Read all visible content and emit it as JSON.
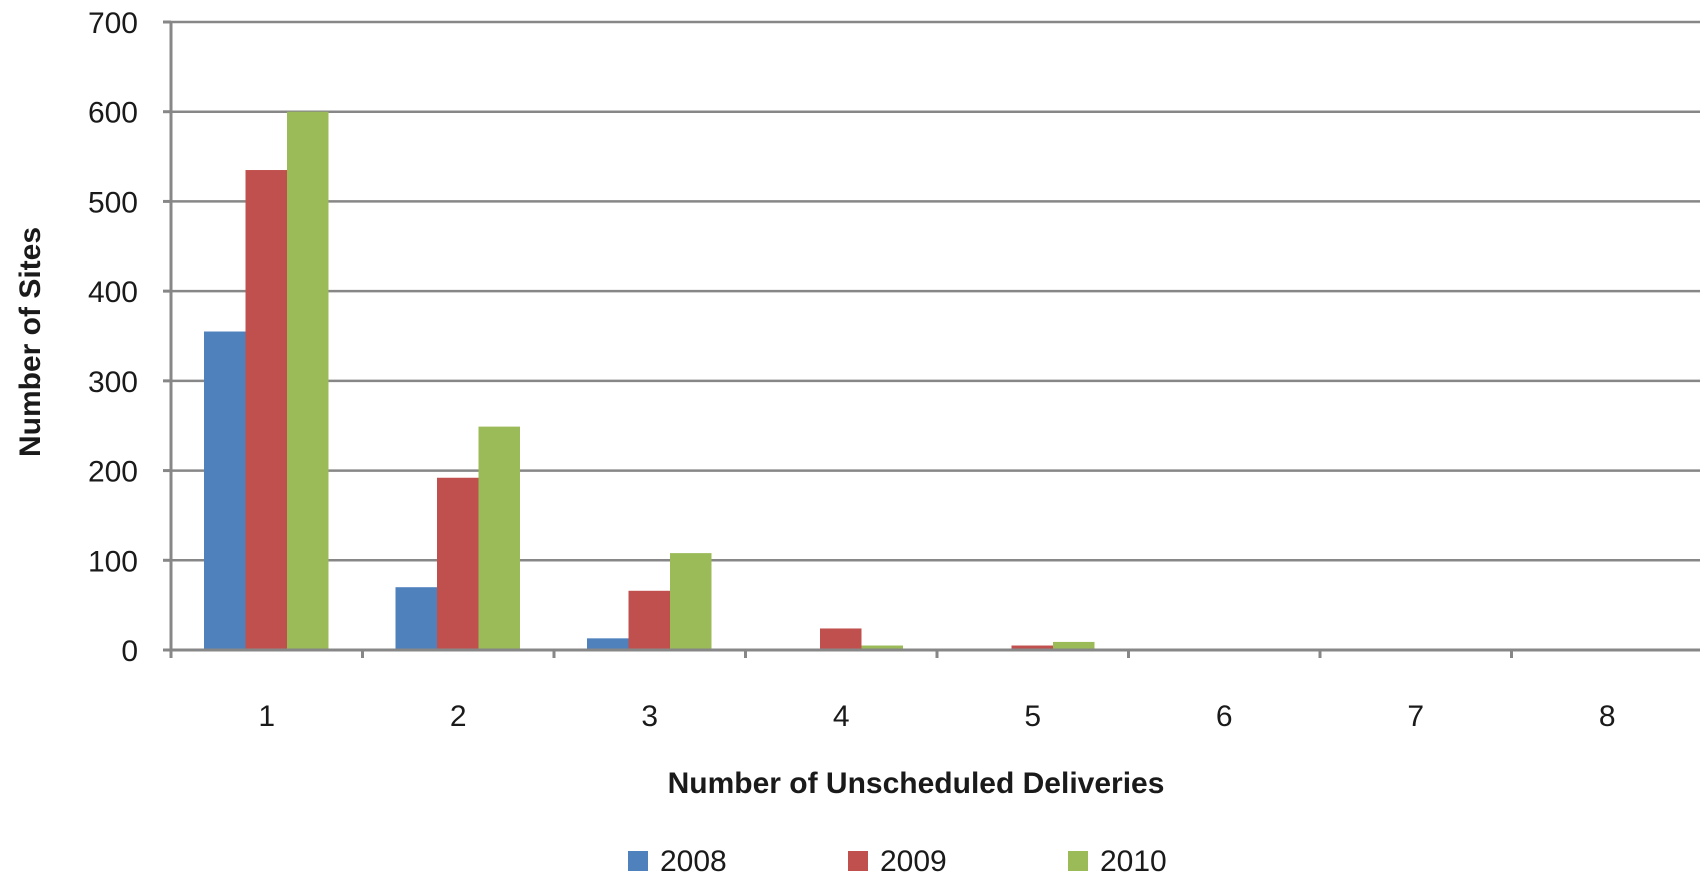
{
  "chart_data": {
    "type": "bar",
    "title": "",
    "xlabel": "Number of Unscheduled Deliveries",
    "ylabel": "Number of Sites",
    "categories": [
      "1",
      "2",
      "3",
      "4",
      "5",
      "6",
      "7",
      "8"
    ],
    "ylim": [
      0,
      700
    ],
    "yticks": [
      0,
      100,
      200,
      300,
      400,
      500,
      600,
      700
    ],
    "grid": true,
    "legend_position": "bottom",
    "series": [
      {
        "name": "2008",
        "color": "#4f81bd",
        "values": [
          355,
          70,
          13,
          0,
          0,
          0,
          0,
          0
        ]
      },
      {
        "name": "2009",
        "color": "#c0504d",
        "values": [
          535,
          192,
          66,
          24,
          5,
          0,
          0,
          0
        ]
      },
      {
        "name": "2010",
        "color": "#9bbb59",
        "values": [
          600,
          249,
          108,
          5,
          9,
          0,
          0,
          0
        ]
      }
    ]
  }
}
